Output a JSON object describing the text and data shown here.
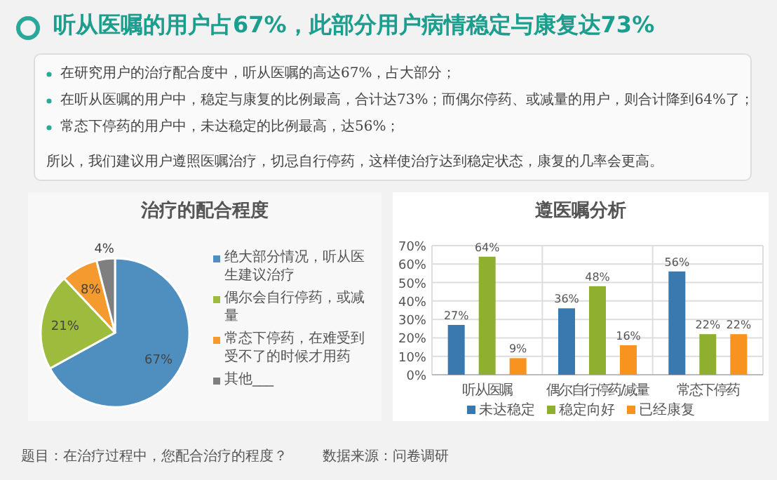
{
  "chart_data": [
    {
      "type": "other",
      "title": "听从医嘱的用户占67%，此部分用户病情稳定与康复达73%",
      "annotations": [
        "在研究用户的治疗配合度中，听从医嘱的高达67%，占大部分；",
        "在听从医嘱的用户中，稳定与康复的比例最高，合计达73%；而偶尔停药、或减量的用户，则合计降到64%了；",
        "常态下停药的用户中，未达稳定的比例最高，达56%；",
        "所以，我们建议用户遵照医嘱治疗，切忌自行停药，这样使治疗达到稳定状态，康复的几率会更高。"
      ]
    },
    {
      "type": "pie",
      "title": "治疗的配合程度",
      "categories": [
        "绝大部分情况，听从医生建议治疗",
        "偶尔会自行停药，或减量",
        "常态下停药，在难受到受不了的时候才用药",
        "其他___"
      ],
      "values": [
        67,
        21,
        8,
        4
      ],
      "value_labels": [
        "67%",
        "21%",
        "8%",
        "4%"
      ],
      "colors": [
        "#4f8fc0",
        "#9dbb3c",
        "#f59a2f",
        "#7f7f7f"
      ],
      "legend": "right",
      "annotations": [
        "题目：在治疗过程中，您配合治疗的程度？",
        "数据来源：问卷调研"
      ]
    },
    {
      "type": "bar",
      "title": "遵医嘱分析",
      "categories": [
        "听从医嘱",
        "偶尔自行停药/减量",
        "常态下停药"
      ],
      "series": [
        {
          "name": "未达稳定",
          "color": "#3a78b0",
          "values": [
            27,
            36,
            56
          ],
          "value_labels": [
            "27%",
            "36%",
            "56%"
          ]
        },
        {
          "name": "稳定向好",
          "color": "#8fb02e",
          "values": [
            64,
            48,
            22
          ],
          "value_labels": [
            "64%",
            "48%",
            "22%"
          ]
        },
        {
          "name": "已经康复",
          "color": "#f7931e",
          "values": [
            9,
            16,
            22
          ],
          "value_labels": [
            "9%",
            "16%",
            "22%"
          ]
        }
      ],
      "ylim": [
        0,
        70
      ],
      "yticks": [
        {
          "value": 0,
          "label": "0%"
        },
        {
          "value": 10,
          "label": "10%"
        },
        {
          "value": 20,
          "label": "20%"
        },
        {
          "value": 30,
          "label": "30%"
        },
        {
          "value": 40,
          "label": "40%"
        },
        {
          "value": 50,
          "label": "50%"
        },
        {
          "value": 60,
          "label": "60%"
        },
        {
          "value": 70,
          "label": "70%"
        }
      ],
      "grid": true,
      "legend": "bottom"
    }
  ]
}
